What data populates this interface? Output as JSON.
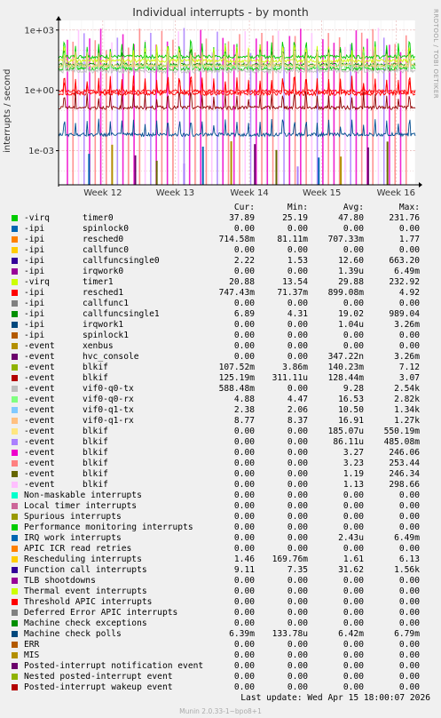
{
  "chart_data": {
    "type": "line",
    "title": "Individual interrupts - by month",
    "ylabel": "interrupts / second",
    "yscale": "log",
    "ylim": [
      2e-05,
      3000
    ],
    "y_ticks": [
      {
        "value": 1000,
        "label": "1e+03"
      },
      {
        "value": 1,
        "label": "1e+00"
      },
      {
        "value": 0.001,
        "label": "1e-03"
      }
    ],
    "x_ticks": [
      {
        "label": "Week 12",
        "pos": 0.124
      },
      {
        "label": "Week 13",
        "pos": 0.327
      },
      {
        "label": "Week 14",
        "pos": 0.535
      },
      {
        "label": "Week 15",
        "pos": 0.738
      },
      {
        "label": "Week 16",
        "pos": 0.946
      }
    ],
    "grid": true,
    "series": [
      {
        "key": "virq-timer0",
        "level": 48,
        "color": "#00cc00"
      },
      {
        "key": "ipi-resched0",
        "level": 0.7,
        "color": "#ff0000"
      },
      {
        "key": "ipi-callfuncsingle0",
        "level": 12,
        "color": "#00cc00"
      },
      {
        "key": "virq-timer1",
        "level": 30,
        "color": "#ccff00"
      },
      {
        "key": "ipi-resched1",
        "level": 0.9,
        "color": "#ff0000"
      },
      {
        "key": "ipi-callfuncsingle1",
        "level": 19,
        "color": "#008f00"
      },
      {
        "key": "event-blkif-107",
        "level": 0.14,
        "color": "#8f0000"
      },
      {
        "key": "event-vif0-q0-tx",
        "level": 9,
        "color": "#c0c0c0"
      },
      {
        "key": "event-vif0-q0-rx",
        "level": 16,
        "color": "#80ff80"
      },
      {
        "key": "event-vif0-q1-rx",
        "level": 17,
        "color": "#ffcc80"
      },
      {
        "key": "machine-check-polls",
        "level": 0.0064,
        "color": "#004c8f"
      }
    ]
  },
  "header": {
    "side_brand": "RRDTOOL / TOBI OETIKER"
  },
  "legend": {
    "columns": [
      "Cur:",
      "Min:",
      "Avg:",
      "Max:"
    ],
    "rows": [
      {
        "color": "#00cc00",
        "type": "-virq",
        "name": "timer0",
        "cur": "37.89",
        "min": "25.19",
        "avg": "47.80",
        "max": "231.76"
      },
      {
        "color": "#0066b3",
        "type": "-ipi",
        "name": "spinlock0",
        "cur": "0.00",
        "min": "0.00",
        "avg": "0.00",
        "max": "0.00"
      },
      {
        "color": "#ff8000",
        "type": "-ipi",
        "name": "resched0",
        "cur": "714.58m",
        "min": "81.11m",
        "avg": "707.33m",
        "max": "1.77"
      },
      {
        "color": "#ffcc00",
        "type": "-ipi",
        "name": "callfunc0",
        "cur": "0.00",
        "min": "0.00",
        "avg": "0.00",
        "max": "0.00"
      },
      {
        "color": "#330099",
        "type": "-ipi",
        "name": "callfuncsingle0",
        "cur": "2.22",
        "min": "1.53",
        "avg": "12.60",
        "max": "663.20"
      },
      {
        "color": "#990099",
        "type": "-ipi",
        "name": "irqwork0",
        "cur": "0.00",
        "min": "0.00",
        "avg": "1.39u",
        "max": "6.49m"
      },
      {
        "color": "#ccff00",
        "type": "-virq",
        "name": "timer1",
        "cur": "20.88",
        "min": "13.54",
        "avg": "29.88",
        "max": "232.92"
      },
      {
        "color": "#ff0000",
        "type": "-ipi",
        "name": "resched1",
        "cur": "747.43m",
        "min": "71.37m",
        "avg": "899.08m",
        "max": "4.92"
      },
      {
        "color": "#808080",
        "type": "-ipi",
        "name": "callfunc1",
        "cur": "0.00",
        "min": "0.00",
        "avg": "0.00",
        "max": "0.00"
      },
      {
        "color": "#008f00",
        "type": "-ipi",
        "name": "callfuncsingle1",
        "cur": "6.89",
        "min": "4.31",
        "avg": "19.02",
        "max": "989.04"
      },
      {
        "color": "#00487d",
        "type": "-ipi",
        "name": "irqwork1",
        "cur": "0.00",
        "min": "0.00",
        "avg": "1.04u",
        "max": "3.26m"
      },
      {
        "color": "#b35a00",
        "type": "-ipi",
        "name": "spinlock1",
        "cur": "0.00",
        "min": "0.00",
        "avg": "0.00",
        "max": "0.00"
      },
      {
        "color": "#b38f00",
        "type": "-event",
        "name": "xenbus",
        "cur": "0.00",
        "min": "0.00",
        "avg": "0.00",
        "max": "0.00"
      },
      {
        "color": "#6b006b",
        "type": "-event",
        "name": "hvc_console",
        "cur": "0.00",
        "min": "0.00",
        "avg": "347.22n",
        "max": "3.26m"
      },
      {
        "color": "#8fb300",
        "type": "-event",
        "name": "blkif",
        "cur": "107.52m",
        "min": "3.86m",
        "avg": "140.23m",
        "max": "7.12"
      },
      {
        "color": "#b30000",
        "type": "-event",
        "name": "blkif",
        "cur": "125.19m",
        "min": "311.11u",
        "avg": "128.44m",
        "max": "3.07"
      },
      {
        "color": "#bebebe",
        "type": "-event",
        "name": "vif0-q0-tx",
        "cur": "588.48m",
        "min": "0.00",
        "avg": "9.28",
        "max": "2.54k"
      },
      {
        "color": "#80ff80",
        "type": "-event",
        "name": "vif0-q0-rx",
        "cur": "4.88",
        "min": "4.47",
        "avg": "16.53",
        "max": "2.82k"
      },
      {
        "color": "#80c9ff",
        "type": "-event",
        "name": "vif0-q1-tx",
        "cur": "2.38",
        "min": "2.06",
        "avg": "10.50",
        "max": "1.34k"
      },
      {
        "color": "#ffc080",
        "type": "-event",
        "name": "vif0-q1-rx",
        "cur": "8.77",
        "min": "8.37",
        "avg": "16.91",
        "max": "1.27k"
      },
      {
        "color": "#ffe680",
        "type": "-event",
        "name": "blkif",
        "cur": "0.00",
        "min": "0.00",
        "avg": "185.07u",
        "max": "550.19m"
      },
      {
        "color": "#aa80ff",
        "type": "-event",
        "name": "blkif",
        "cur": "0.00",
        "min": "0.00",
        "avg": "86.11u",
        "max": "485.08m"
      },
      {
        "color": "#ee00cc",
        "type": "-event",
        "name": "blkif",
        "cur": "0.00",
        "min": "0.00",
        "avg": "3.27",
        "max": "246.06"
      },
      {
        "color": "#ff8080",
        "type": "-event",
        "name": "blkif",
        "cur": "0.00",
        "min": "0.00",
        "avg": "3.23",
        "max": "253.44"
      },
      {
        "color": "#666600",
        "type": "-event",
        "name": "blkif",
        "cur": "0.00",
        "min": "0.00",
        "avg": "1.19",
        "max": "246.34"
      },
      {
        "color": "#ffbfff",
        "type": "-event",
        "name": "blkif",
        "cur": "0.00",
        "min": "0.00",
        "avg": "1.13",
        "max": "298.66"
      },
      {
        "color": "#00ffcc",
        "type": "Non-maskable interrupts",
        "name": "",
        "cur": "0.00",
        "min": "0.00",
        "avg": "0.00",
        "max": "0.00"
      },
      {
        "color": "#cc6699",
        "type": "Local timer interrupts",
        "name": "",
        "cur": "0.00",
        "min": "0.00",
        "avg": "0.00",
        "max": "0.00"
      },
      {
        "color": "#999900",
        "type": "Spurious interrupts",
        "name": "",
        "cur": "0.00",
        "min": "0.00",
        "avg": "0.00",
        "max": "0.00"
      },
      {
        "color": "#00cc00",
        "type": "Performance monitoring interrupts",
        "name": "",
        "cur": "0.00",
        "min": "0.00",
        "avg": "0.00",
        "max": "0.00"
      },
      {
        "color": "#0066b3",
        "type": "IRQ work interrupts",
        "name": "",
        "cur": "0.00",
        "min": "0.00",
        "avg": "2.43u",
        "max": "6.49m"
      },
      {
        "color": "#ff8000",
        "type": "APIC ICR read retries",
        "name": "",
        "cur": "0.00",
        "min": "0.00",
        "avg": "0.00",
        "max": "0.00"
      },
      {
        "color": "#ffcc00",
        "type": "Rescheduling interrupts",
        "name": "",
        "cur": "1.46",
        "min": "169.76m",
        "avg": "1.61",
        "max": "6.13"
      },
      {
        "color": "#330099",
        "type": "Function call interrupts",
        "name": "",
        "cur": "9.11",
        "min": "7.35",
        "avg": "31.62",
        "max": "1.56k"
      },
      {
        "color": "#990099",
        "type": "TLB shootdowns",
        "name": "",
        "cur": "0.00",
        "min": "0.00",
        "avg": "0.00",
        "max": "0.00"
      },
      {
        "color": "#ccff00",
        "type": "Thermal event interrupts",
        "name": "",
        "cur": "0.00",
        "min": "0.00",
        "avg": "0.00",
        "max": "0.00"
      },
      {
        "color": "#ff0000",
        "type": "Threshold APIC interrupts",
        "name": "",
        "cur": "0.00",
        "min": "0.00",
        "avg": "0.00",
        "max": "0.00"
      },
      {
        "color": "#808080",
        "type": "Deferred Error APIC interrupts",
        "name": "",
        "cur": "0.00",
        "min": "0.00",
        "avg": "0.00",
        "max": "0.00"
      },
      {
        "color": "#008f00",
        "type": "Machine check exceptions",
        "name": "",
        "cur": "0.00",
        "min": "0.00",
        "avg": "0.00",
        "max": "0.00"
      },
      {
        "color": "#00487d",
        "type": "Machine check polls",
        "name": "",
        "cur": "6.39m",
        "min": "133.78u",
        "avg": "6.42m",
        "max": "6.79m"
      },
      {
        "color": "#b35a00",
        "type": "ERR",
        "name": "",
        "cur": "0.00",
        "min": "0.00",
        "avg": "0.00",
        "max": "0.00"
      },
      {
        "color": "#b38f00",
        "type": "MIS",
        "name": "",
        "cur": "0.00",
        "min": "0.00",
        "avg": "0.00",
        "max": "0.00"
      },
      {
        "color": "#6b006b",
        "type": "Posted-interrupt notification event",
        "name": "",
        "cur": "0.00",
        "min": "0.00",
        "avg": "0.00",
        "max": "0.00"
      },
      {
        "color": "#8fb300",
        "type": "Nested posted-interrupt event",
        "name": "",
        "cur": "0.00",
        "min": "0.00",
        "avg": "0.00",
        "max": "0.00"
      },
      {
        "color": "#b30000",
        "type": "Posted-interrupt wakeup event",
        "name": "",
        "cur": "0.00",
        "min": "0.00",
        "avg": "0.00",
        "max": "0.00"
      }
    ]
  },
  "last_update": "Last update: Wed Apr 15 18:00:07 2026",
  "footer": "Munin 2.0.33-1~bpo8+1"
}
